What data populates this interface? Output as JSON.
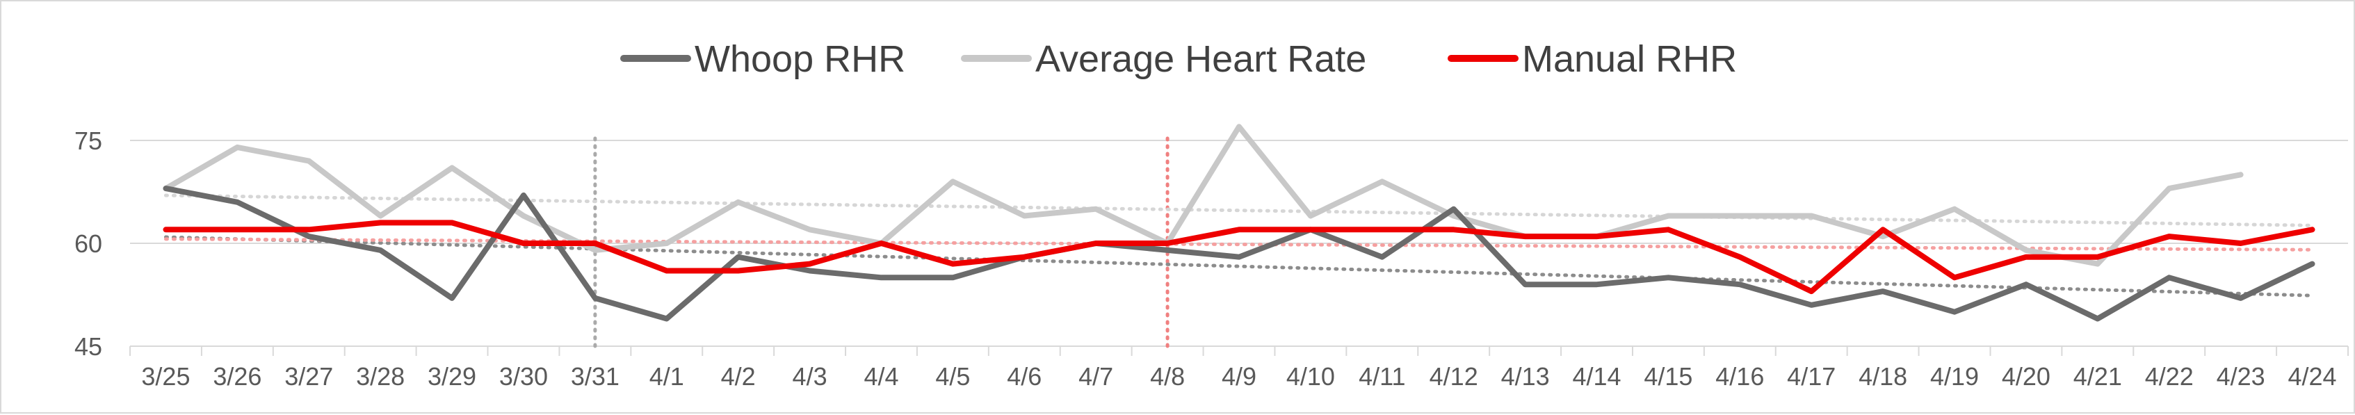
{
  "chart_data": {
    "type": "line",
    "title": "",
    "xlabel": "",
    "ylabel": "",
    "ylim": [
      45,
      75
    ],
    "yticks": [
      45,
      60,
      75
    ],
    "grid": "horizontal",
    "legend_position": "top-center",
    "categories": [
      "3/25",
      "3/26",
      "3/27",
      "3/28",
      "3/29",
      "3/30",
      "3/31",
      "4/1",
      "4/2",
      "4/3",
      "4/4",
      "4/5",
      "4/6",
      "4/7",
      "4/8",
      "4/9",
      "4/10",
      "4/11",
      "4/12",
      "4/13",
      "4/14",
      "4/15",
      "4/16",
      "4/17",
      "4/18",
      "4/19",
      "4/20",
      "4/21",
      "4/22",
      "4/23",
      "4/24"
    ],
    "series": [
      {
        "name": "Whoop RHR",
        "color": "#6b6b6b",
        "values": [
          68,
          66,
          61,
          59,
          52,
          67,
          52,
          49,
          58,
          56,
          55,
          55,
          58,
          60,
          59,
          58,
          62,
          58,
          65,
          54,
          54,
          55,
          54,
          51,
          53,
          50,
          54,
          49,
          55,
          52,
          57
        ],
        "trendline": true
      },
      {
        "name": "Average Heart Rate",
        "color": "#c8c8c8",
        "values": [
          68,
          74,
          72,
          64,
          71,
          64,
          59,
          60,
          66,
          62,
          60,
          69,
          64,
          65,
          60,
          77,
          64,
          69,
          64,
          61,
          61,
          64,
          64,
          64,
          61,
          65,
          59,
          57,
          68,
          70,
          null
        ],
        "trendline": true
      },
      {
        "name": "Manual RHR",
        "color": "#ee0000",
        "values": [
          62,
          62,
          62,
          63,
          63,
          60,
          60,
          56,
          56,
          57,
          60,
          57,
          58,
          60,
          60,
          62,
          62,
          62,
          62,
          61,
          61,
          62,
          58,
          53,
          62,
          55,
          58,
          58,
          61,
          60,
          62
        ],
        "trendline": true
      }
    ],
    "reference_lines": [
      {
        "x": "3/31",
        "color": "#aaaaaa",
        "style": "dotted"
      },
      {
        "x": "4/8",
        "color": "#f08080",
        "style": "dotted"
      }
    ]
  }
}
